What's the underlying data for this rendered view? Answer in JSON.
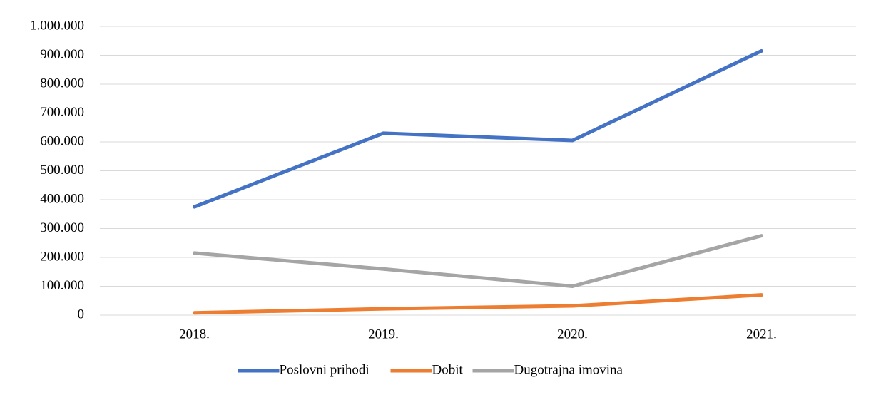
{
  "chart_data": {
    "type": "line",
    "categories": [
      "2018.",
      "2019.",
      "2020.",
      "2021."
    ],
    "series": [
      {
        "name": "Poslovni prihodi",
        "color": "#4472c4",
        "values": [
          375000,
          630000,
          605000,
          915000
        ]
      },
      {
        "name": "Dobit",
        "color": "#ed7d31",
        "values": [
          8000,
          22000,
          32000,
          70000
        ]
      },
      {
        "name": "Dugotrajna imovina",
        "color": "#a5a5a5",
        "values": [
          215000,
          160000,
          100000,
          275000
        ]
      }
    ],
    "ylim": [
      0,
      1000000
    ],
    "yticks": [
      0,
      {
        "value": 100000,
        "label": "100.000"
      },
      {
        "value": 200000,
        "label": "200.000"
      },
      {
        "value": 300000,
        "label": "300.000"
      },
      {
        "value": 400000,
        "label": "400.000"
      },
      {
        "value": 500000,
        "label": "500.000"
      },
      {
        "value": 600000,
        "label": "600.000"
      },
      {
        "value": 700000,
        "label": "700.000"
      },
      {
        "value": 800000,
        "label": "800.000"
      },
      {
        "value": 900000,
        "label": "900.000"
      },
      {
        "value": 1000000,
        "label": "1.000.000"
      }
    ],
    "grid": true,
    "legend": "bottom"
  }
}
